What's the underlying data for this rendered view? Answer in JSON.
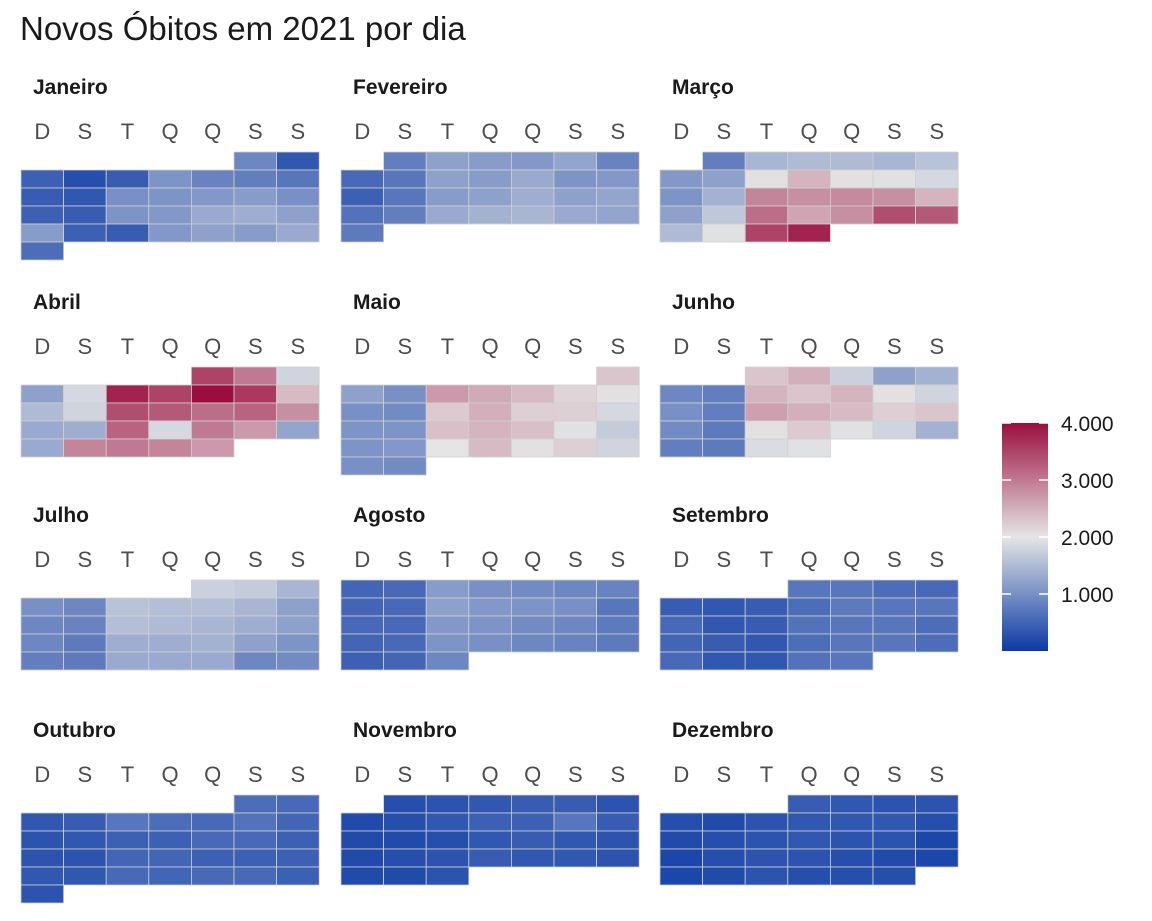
{
  "chart_data": {
    "type": "heatmap",
    "title": "Novos Óbitos em 2021 por dia",
    "weekday_labels": [
      "D",
      "S",
      "T",
      "Q",
      "Q",
      "S",
      "S"
    ],
    "color_scale": {
      "domain": [
        0,
        4000
      ],
      "breaks": [
        1000,
        2000,
        3000,
        4000
      ],
      "break_labels": [
        "1.000",
        "2.000",
        "3.000",
        "4.000"
      ],
      "low_color": "#0b3aa5",
      "mid_color": "#e5e5e5",
      "high_color": "#9b0d3e",
      "midpoint": 2000
    },
    "months": [
      {
        "name": "Janeiro",
        "first_weekday": 5,
        "values": [
          900,
          350,
          450,
          250,
          400,
          1050,
          850,
          800,
          700,
          400,
          350,
          1000,
          1050,
          1100,
          1150,
          1000,
          450,
          400,
          1050,
          1100,
          1300,
          1350,
          1200,
          1150,
          450,
          400,
          1100,
          1200,
          1150,
          1300,
          600
        ]
      },
      {
        "name": "Fevereiro",
        "first_weekday": 1,
        "values": [
          800,
          1200,
          1150,
          1100,
          1250,
          850,
          550,
          700,
          1200,
          1150,
          1300,
          1050,
          1100,
          450,
          700,
          1150,
          1200,
          1350,
          1200,
          1250,
          650,
          800,
          1300,
          1400,
          1450,
          1300,
          1250,
          750
        ]
      },
      {
        "name": "Março",
        "first_weekday": 1,
        "values": [
          800,
          1450,
          1500,
          1500,
          1450,
          1600,
          1100,
          1200,
          2050,
          2450,
          2050,
          1950,
          1850,
          1050,
          1400,
          2900,
          2800,
          2850,
          2800,
          2450,
          1200,
          1650,
          3100,
          2600,
          2800,
          3400,
          3300,
          1500,
          1950,
          3500,
          3800
        ]
      },
      {
        "name": "Abril",
        "first_weekday": 4,
        "values": [
          3500,
          3000,
          1800,
          1200,
          1850,
          3800,
          3500,
          4000,
          3600,
          2400,
          1500,
          1800,
          3400,
          3300,
          3100,
          3200,
          2800,
          1300,
          1350,
          3200,
          1850,
          3000,
          2700,
          1250,
          1300,
          2900,
          3000,
          2900,
          2700
        ]
      },
      {
        "name": "Maio",
        "first_weekday": 6,
        "values": [
          2300,
          1200,
          1000,
          2700,
          2550,
          2400,
          2150,
          2050,
          1000,
          950,
          2250,
          2500,
          2200,
          2200,
          1850,
          1050,
          1050,
          2350,
          2450,
          2350,
          1950,
          1700,
          1050,
          1100,
          2000,
          2400,
          2050,
          2200,
          1800,
          1000,
          950
        ]
      },
      {
        "name": "Junho",
        "first_weekday": 2,
        "values": [
          2300,
          2500,
          1750,
          1200,
          1400,
          900,
          800,
          2450,
          2300,
          2450,
          2050,
          1800,
          1000,
          800,
          2650,
          2500,
          2400,
          2200,
          2300,
          950,
          750,
          2050,
          2250,
          1950,
          1800,
          1400,
          800,
          750,
          1900,
          1950
        ]
      },
      {
        "name": "Julho",
        "first_weekday": 4,
        "values": [
          1750,
          1700,
          1450,
          1000,
          900,
          1600,
          1550,
          1550,
          1450,
          1200,
          900,
          850,
          1550,
          1500,
          1450,
          1350,
          1200,
          900,
          750,
          1350,
          1350,
          1400,
          1200,
          1050,
          800,
          750,
          1300,
          1300,
          1300,
          900,
          950
        ]
      },
      {
        "name": "Agosto",
        "first_weekday": 0,
        "values": [
          500,
          550,
          1150,
          1000,
          950,
          900,
          850,
          500,
          550,
          1200,
          1100,
          1050,
          1000,
          700,
          550,
          550,
          1100,
          1050,
          950,
          900,
          750,
          500,
          550,
          1050,
          1000,
          900,
          850,
          750,
          450,
          500,
          900
        ]
      },
      {
        "name": "Setembro",
        "first_weekday": 3,
        "values": [
          700,
          700,
          600,
          550,
          400,
          350,
          400,
          600,
          750,
          700,
          700,
          550,
          350,
          400,
          650,
          700,
          700,
          600,
          500,
          400,
          350,
          600,
          700,
          700,
          600,
          550,
          350,
          350,
          650,
          700
        ]
      },
      {
        "name": "Outubro",
        "first_weekday": 5,
        "values": [
          600,
          550,
          350,
          400,
          700,
          600,
          550,
          650,
          500,
          300,
          350,
          450,
          450,
          550,
          550,
          450,
          300,
          300,
          500,
          500,
          450,
          450,
          450,
          350,
          350,
          550,
          500,
          550,
          550,
          450,
          300
        ]
      },
      {
        "name": "Novembro",
        "first_weekday": 1,
        "values": [
          250,
          300,
          350,
          400,
          400,
          300,
          200,
          250,
          350,
          450,
          450,
          700,
          400,
          200,
          200,
          250,
          350,
          400,
          350,
          300,
          200,
          250,
          300,
          400,
          350,
          350,
          300,
          200,
          200,
          300
        ]
      },
      {
        "name": "Dezembro",
        "first_weekday": 3,
        "values": [
          400,
          350,
          300,
          300,
          250,
          200,
          300,
          350,
          350,
          350,
          250,
          200,
          250,
          300,
          350,
          300,
          300,
          150,
          150,
          250,
          300,
          300,
          250,
          200,
          150,
          150,
          200,
          300,
          250,
          250,
          250
        ]
      }
    ]
  }
}
